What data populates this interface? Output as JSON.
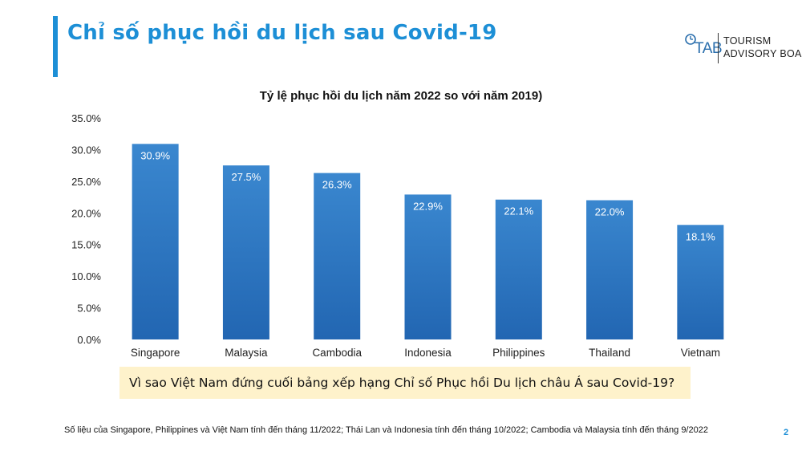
{
  "slide": {
    "title": "Chỉ số phục hồi du lịch sau Covid-19",
    "logo": {
      "mark": "TAB",
      "line1": "TOURISM",
      "line2": "ADVISORY BOARD"
    },
    "question": "Vì sao Việt Nam đứng cuối bảng xếp hạng Chỉ số Phục hồi Du lịch châu Á sau Covid-19?",
    "footnote": "Số liệu của Singapore, Philippines và Việt Nam tính đến tháng 11/2022; Thái Lan và Indonesia tính đến tháng 10/2022; Cambodia và Malaysia tính đến tháng 9/2022",
    "page_number": "2",
    "accent_color": "#1d8fd6"
  },
  "chart_data": {
    "type": "bar",
    "title": "Tỷ lệ phục hồi du lịch năm 2022 so với năm 2019)",
    "categories": [
      "Singapore",
      "Malaysia",
      "Cambodia",
      "Indonesia",
      "Philippines",
      "Thailand",
      "Vietnam"
    ],
    "values": [
      30.9,
      27.5,
      26.3,
      22.9,
      22.1,
      22.0,
      18.1
    ],
    "data_labels": [
      "30.9%",
      "27.5%",
      "26.3%",
      "22.9%",
      "22.1%",
      "22.0%",
      "18.1%"
    ],
    "yticks": [
      "0.0%",
      "5.0%",
      "10.0%",
      "15.0%",
      "20.0%",
      "25.0%",
      "30.0%",
      "35.0%"
    ],
    "ylim": [
      0,
      35
    ],
    "xlabel": "",
    "ylabel": "",
    "grid": false,
    "legend": "none",
    "bar_color_top": "#3a87cf",
    "bar_color_bottom": "#2266b2"
  }
}
